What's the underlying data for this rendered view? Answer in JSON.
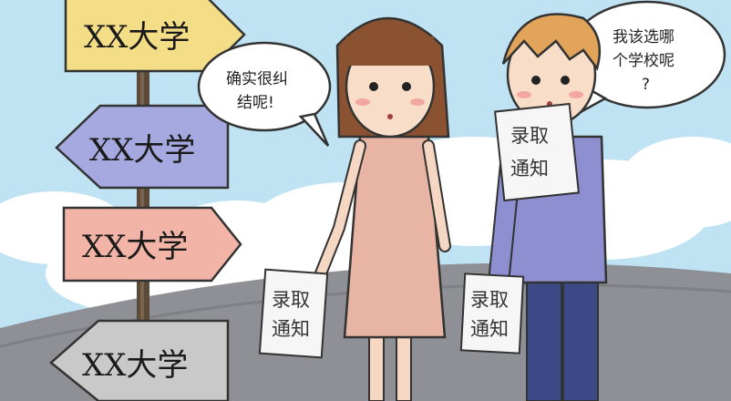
{
  "signs": [
    {
      "label": "XX大学",
      "color": "#f3dd86"
    },
    {
      "label": "XX大学",
      "color": "#a6a8e0"
    },
    {
      "label": "XX大学",
      "color": "#f2b4a6"
    },
    {
      "label": "XX大学",
      "color": "#c9c9c9"
    }
  ],
  "bubbles": {
    "girl": {
      "line1": "确实很纠",
      "line2": "结呢!"
    },
    "boy": {
      "line1": "我该选哪",
      "line2": "个学校呢",
      "line3": "?"
    }
  },
  "papers": {
    "girl_paper": {
      "line1": "录取",
      "line2": "通知"
    },
    "boy_paper": {
      "line1": "录取",
      "line2": "通知"
    },
    "boy_raised": {
      "line1": "录取",
      "line2": "通知"
    }
  },
  "colors": {
    "sky": "#bfe3f3",
    "cloud": "#ffffff",
    "ground": "#8f8f96",
    "girl_dress": "#e8b4a3",
    "girl_hair": "#8a5230",
    "boy_shirt": "#8d8fd1",
    "boy_pants": "#3b4a86",
    "boy_hair": "#e2a35a",
    "post": "#5b4a38"
  }
}
